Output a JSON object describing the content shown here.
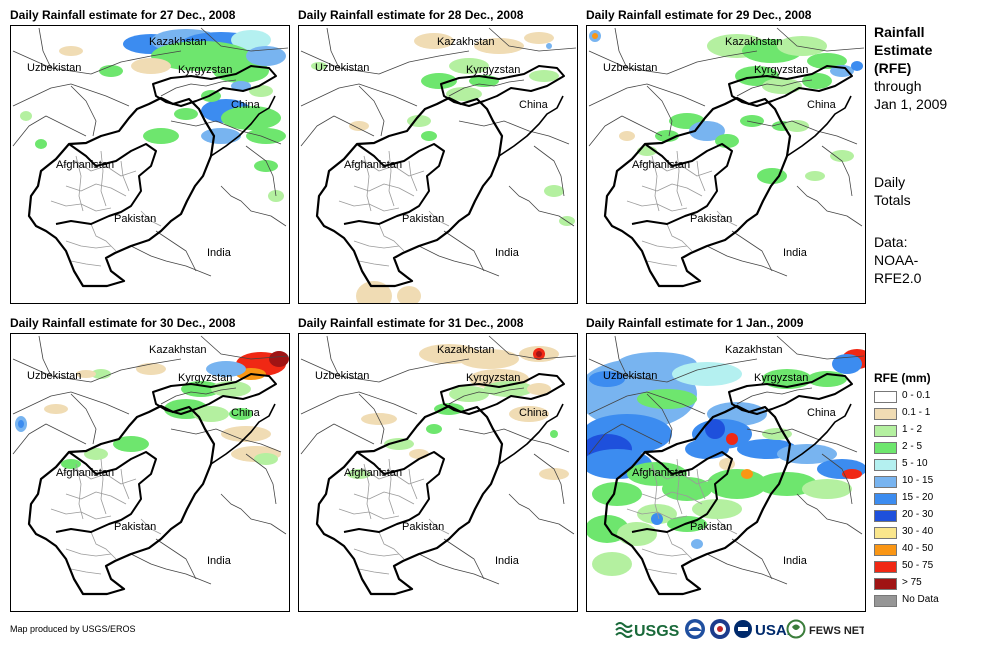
{
  "panels": [
    {
      "title": "Daily Rainfall estimate for 27 Dec., 2008",
      "variant": "p27"
    },
    {
      "title": "Daily Rainfall estimate for 28 Dec., 2008",
      "variant": "p28"
    },
    {
      "title": "Daily Rainfall estimate for 29 Dec., 2008",
      "variant": "p29"
    },
    {
      "title": "Daily Rainfall estimate for 30 Dec., 2008",
      "variant": "p30"
    },
    {
      "title": "Daily Rainfall estimate for 31 Dec., 2008",
      "variant": "p31"
    },
    {
      "title": "Daily Rainfall estimate for 1 Jan., 2009",
      "variant": "p01"
    }
  ],
  "map_labels": {
    "kazakhstan": "Kazakhstan",
    "uzbekistan": "Uzbekistan",
    "kyrgyzstan": "Kyrgyzstan",
    "china": "China",
    "afghanistan": "Afghanistan",
    "pakistan": "Pakistan",
    "india": "India"
  },
  "sidebar": {
    "title_line1": "Rainfall",
    "title_line2": "Estimate",
    "title_line3": "(RFE)",
    "through_line1": "through",
    "through_line2": "Jan 1, 2009",
    "daily_line1": "Daily",
    "daily_line2": "Totals",
    "data_line1": "Data:",
    "data_line2": "NOAA-",
    "data_line3": "RFE2.0"
  },
  "legend": {
    "title": "RFE (mm)",
    "items": [
      {
        "label": "0 - 0.1",
        "color": "#ffffff"
      },
      {
        "label": "0.1 - 1",
        "color": "#f0dcb4"
      },
      {
        "label": "1 - 2",
        "color": "#b4f0a0"
      },
      {
        "label": "2 - 5",
        "color": "#6ee66e"
      },
      {
        "label": "5 - 10",
        "color": "#b4f0f0"
      },
      {
        "label": "10 - 15",
        "color": "#78b4f0"
      },
      {
        "label": "15 - 20",
        "color": "#3c8cf0"
      },
      {
        "label": "20 - 30",
        "color": "#1e50dc"
      },
      {
        "label": "30 - 40",
        "color": "#fae68c"
      },
      {
        "label": "40 - 50",
        "color": "#fa9614"
      },
      {
        "label": "50 - 75",
        "color": "#f02814"
      },
      {
        "label": "> 75",
        "color": "#a01414"
      },
      {
        "label": "No Data",
        "color": "#969696"
      }
    ]
  },
  "footer": {
    "credit": "Map produced by USGS/EROS",
    "logos": [
      "USGS",
      "NOAA",
      "USAID",
      "FEWS NET"
    ]
  }
}
